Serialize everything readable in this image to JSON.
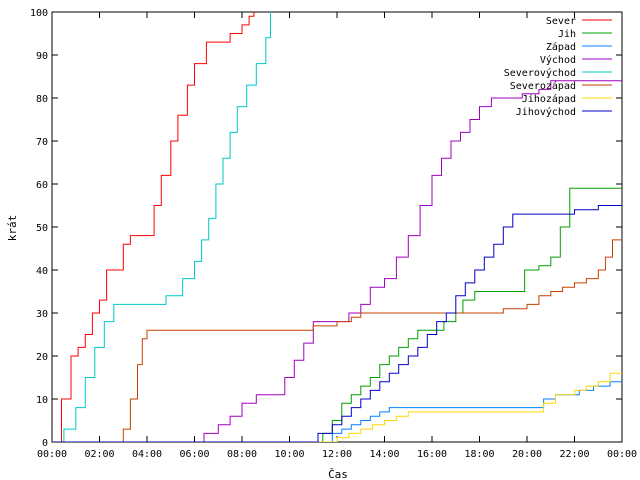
{
  "chart_data": {
    "type": "line",
    "xlabel": "Čas",
    "ylabel": "krát",
    "xlim": [
      0,
      24
    ],
    "ylim": [
      0,
      100
    ],
    "grid": false,
    "legend_position": "top-right",
    "x_ticks": [
      {
        "x": 0,
        "label": "00:00"
      },
      {
        "x": 2,
        "label": "02:00"
      },
      {
        "x": 4,
        "label": "04:00"
      },
      {
        "x": 6,
        "label": "06:00"
      },
      {
        "x": 8,
        "label": "08:00"
      },
      {
        "x": 10,
        "label": "10:00"
      },
      {
        "x": 12,
        "label": "12:00"
      },
      {
        "x": 14,
        "label": "14:00"
      },
      {
        "x": 16,
        "label": "16:00"
      },
      {
        "x": 18,
        "label": "18:00"
      },
      {
        "x": 20,
        "label": "20:00"
      },
      {
        "x": 22,
        "label": "22:00"
      },
      {
        "x": 24,
        "label": "00:00"
      }
    ],
    "y_ticks": [
      0,
      10,
      20,
      30,
      40,
      50,
      60,
      70,
      80,
      90,
      100
    ],
    "series": [
      {
        "name": "Sever",
        "color": "#ff0000",
        "x": [
          0,
          0.4,
          0.8,
          1.1,
          1.4,
          1.7,
          2.0,
          2.3,
          2.6,
          3.0,
          3.3,
          4.0,
          4.3,
          4.6,
          5.0,
          5.3,
          5.7,
          6.0,
          6.5,
          7.0,
          7.5,
          8.0,
          8.3,
          8.5
        ],
        "y": [
          0,
          10,
          20,
          22,
          25,
          30,
          33,
          40,
          40,
          46,
          48,
          48,
          55,
          62,
          70,
          76,
          83,
          88,
          93,
          93,
          95,
          97,
          99,
          100
        ]
      },
      {
        "name": "Jih",
        "color": "#00a000",
        "x": [
          0,
          11.4,
          11.8,
          12.2,
          12.6,
          13.0,
          13.4,
          13.8,
          14.2,
          14.6,
          15.0,
          15.4,
          16.0,
          16.5,
          17.0,
          17.3,
          17.8,
          18.5,
          19.5,
          19.9,
          20.5,
          21.0,
          21.4,
          21.8,
          22.5,
          24.0
        ],
        "y": [
          0,
          2,
          5,
          9,
          11,
          13,
          15,
          18,
          20,
          22,
          24,
          26,
          26,
          28,
          30,
          33,
          35,
          35,
          35,
          40,
          41,
          43,
          50,
          59,
          59,
          59
        ]
      },
      {
        "name": "Západ",
        "color": "#0080ff",
        "x": [
          0,
          11.8,
          12.2,
          12.6,
          13.0,
          13.4,
          13.8,
          14.2,
          15.0,
          16.0,
          17.0,
          18.0,
          19.0,
          20.0,
          20.7,
          21.2,
          22.2,
          22.8,
          23.5,
          24.0
        ],
        "y": [
          0,
          2,
          3,
          4,
          5,
          6,
          7,
          8,
          8,
          8,
          8,
          8,
          8,
          8,
          10,
          11,
          12,
          13,
          14,
          14
        ]
      },
      {
        "name": "Východ",
        "color": "#a000c0",
        "x": [
          0,
          6.4,
          7.0,
          7.5,
          8.0,
          8.6,
          9.0,
          9.8,
          10.2,
          10.6,
          11.0,
          11.6,
          12.5,
          13.0,
          13.4,
          14.0,
          14.5,
          15.0,
          15.5,
          16.0,
          16.4,
          16.8,
          17.2,
          17.6,
          18.0,
          18.5,
          19.0,
          19.8,
          20.5,
          21.0,
          21.8,
          22.5,
          24.0
        ],
        "y": [
          0,
          2,
          4,
          6,
          9,
          11,
          11,
          15,
          19,
          23,
          28,
          28,
          30,
          32,
          36,
          38,
          43,
          48,
          55,
          62,
          66,
          70,
          72,
          75,
          78,
          80,
          80,
          81,
          82,
          84,
          84,
          84,
          84
        ]
      },
      {
        "name": "Severovýchod",
        "color": "#00c8c8",
        "x": [
          0,
          0.5,
          1.0,
          1.4,
          1.8,
          2.2,
          2.6,
          3.0,
          3.5,
          4.0,
          4.8,
          5.5,
          6.0,
          6.3,
          6.6,
          6.9,
          7.2,
          7.5,
          7.8,
          8.2,
          8.6,
          9.0,
          9.2
        ],
        "y": [
          0,
          3,
          8,
          15,
          22,
          28,
          32,
          32,
          32,
          32,
          34,
          38,
          42,
          47,
          52,
          60,
          66,
          72,
          78,
          83,
          88,
          94,
          100
        ]
      },
      {
        "name": "Severozápad",
        "color": "#c84000",
        "x": [
          0,
          3.0,
          3.3,
          3.6,
          3.8,
          4.0,
          6.0,
          8.0,
          10.0,
          11.0,
          12.0,
          12.6,
          13.0,
          15.0,
          16.8,
          18.0,
          19.0,
          20.0,
          20.5,
          21.0,
          21.5,
          22.0,
          22.5,
          23.0,
          23.3,
          23.6,
          24.0
        ],
        "y": [
          0,
          3,
          10,
          18,
          24,
          26,
          26,
          26,
          26,
          27,
          28,
          29,
          30,
          30,
          30,
          30,
          31,
          32,
          34,
          35,
          36,
          37,
          38,
          40,
          43,
          47,
          47
        ]
      },
      {
        "name": "Jihozápad",
        "color": "#ffd700",
        "x": [
          0,
          12.0,
          12.5,
          13.0,
          13.5,
          14.0,
          14.5,
          15.0,
          15.5,
          16.0,
          17.0,
          18.0,
          19.0,
          20.0,
          20.7,
          21.2,
          22.0,
          22.5,
          23.0,
          23.5,
          24.0
        ],
        "y": [
          0,
          1,
          2,
          3,
          4,
          5,
          6,
          7,
          7,
          7,
          7,
          7,
          7,
          7,
          9,
          11,
          12,
          13,
          14,
          16,
          16
        ]
      },
      {
        "name": "Jihovýchod",
        "color": "#0000c8",
        "x": [
          0,
          11.2,
          11.8,
          12.2,
          12.6,
          13.0,
          13.4,
          13.8,
          14.2,
          14.6,
          15.0,
          15.4,
          15.8,
          16.2,
          16.6,
          17.0,
          17.4,
          17.8,
          18.2,
          18.6,
          19.0,
          19.4,
          19.8,
          20.5,
          21.0,
          21.5,
          22.0,
          22.5,
          23.0,
          24.0
        ],
        "y": [
          0,
          2,
          4,
          6,
          8,
          10,
          12,
          14,
          16,
          18,
          20,
          22,
          25,
          28,
          30,
          34,
          37,
          40,
          43,
          46,
          50,
          53,
          53,
          53,
          53,
          53,
          54,
          54,
          55,
          55
        ]
      }
    ]
  }
}
